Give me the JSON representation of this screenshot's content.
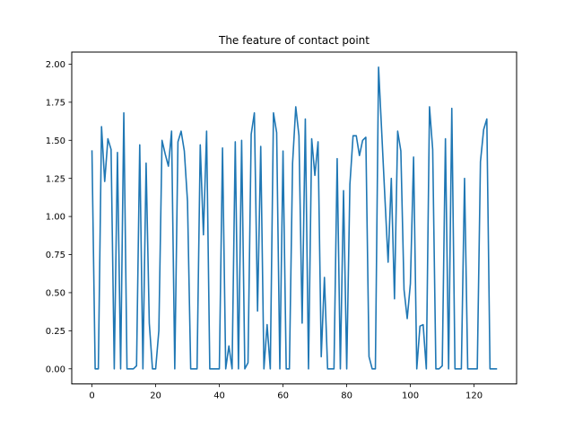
{
  "chart_data": {
    "type": "line",
    "title": "The feature of contact point",
    "xlabel": "",
    "ylabel": "",
    "xlim": [
      -6.35,
      133.35
    ],
    "ylim": [
      -0.0992,
      2.0792
    ],
    "xticks": [
      0,
      20,
      40,
      60,
      80,
      100,
      120
    ],
    "yticks": [
      0.0,
      0.25,
      0.5,
      0.75,
      1.0,
      1.25,
      1.5,
      1.75,
      2.0
    ],
    "xtick_labels": [
      "0",
      "20",
      "40",
      "60",
      "80",
      "100",
      "120"
    ],
    "ytick_labels": [
      "0.00",
      "0.25",
      "0.50",
      "0.75",
      "1.00",
      "1.25",
      "1.50",
      "1.75",
      "2.00"
    ],
    "grid": false,
    "series": [
      {
        "color": "#1f77b4",
        "x": [
          0,
          1,
          2,
          3,
          4,
          5,
          6,
          7,
          8,
          9,
          10,
          11,
          12,
          13,
          14,
          15,
          16,
          17,
          18,
          19,
          20,
          21,
          22,
          23,
          24,
          25,
          26,
          27,
          28,
          29,
          30,
          31,
          32,
          33,
          34,
          35,
          36,
          37,
          38,
          39,
          40,
          41,
          42,
          43,
          44,
          45,
          46,
          47,
          48,
          49,
          50,
          51,
          52,
          53,
          54,
          55,
          56,
          57,
          58,
          59,
          60,
          61,
          62,
          63,
          64,
          65,
          66,
          67,
          68,
          69,
          70,
          71,
          72,
          73,
          74,
          75,
          76,
          77,
          78,
          79,
          80,
          81,
          82,
          83,
          84,
          85,
          86,
          87,
          88,
          89,
          90,
          91,
          92,
          93,
          94,
          95,
          96,
          97,
          98,
          99,
          100,
          101,
          102,
          103,
          104,
          105,
          106,
          107,
          108,
          109,
          110,
          111,
          112,
          113,
          114,
          115,
          116,
          117,
          118,
          119,
          120,
          121,
          122,
          123,
          124,
          125,
          126,
          127
        ],
        "y": [
          1.43,
          0.0,
          0.0,
          1.59,
          1.23,
          1.51,
          1.44,
          0.0,
          1.42,
          0.0,
          1.68,
          0.0,
          0.0,
          0.0,
          0.02,
          1.47,
          0.0,
          1.35,
          0.3,
          0.0,
          0.0,
          0.25,
          1.5,
          1.41,
          1.33,
          1.56,
          0.0,
          1.49,
          1.56,
          1.43,
          1.1,
          0.0,
          0.0,
          0.0,
          1.47,
          0.88,
          1.56,
          0.0,
          0.0,
          0.0,
          0.0,
          1.45,
          0.0,
          0.15,
          0.0,
          1.49,
          0.0,
          1.5,
          0.0,
          0.04,
          1.54,
          1.68,
          0.38,
          1.46,
          0.0,
          0.29,
          0.0,
          1.68,
          1.55,
          0.0,
          1.43,
          0.0,
          0.0,
          1.35,
          1.72,
          1.53,
          0.3,
          1.64,
          0.0,
          1.51,
          1.27,
          1.49,
          0.08,
          0.6,
          0.0,
          0.0,
          0.0,
          1.38,
          0.0,
          1.17,
          0.0,
          1.21,
          1.53,
          1.53,
          1.4,
          1.5,
          1.52,
          0.08,
          0.0,
          0.0,
          1.98,
          1.55,
          1.12,
          0.7,
          1.25,
          0.46,
          1.56,
          1.43,
          0.52,
          0.33,
          0.56,
          1.39,
          0.0,
          0.28,
          0.29,
          0.0,
          1.72,
          1.44,
          0.0,
          0.0,
          0.02,
          1.51,
          0.0,
          1.71,
          0.0,
          0.0,
          0.0,
          1.25,
          0.0,
          0.0,
          0.0,
          0.0,
          1.36,
          1.57,
          1.64,
          0.0,
          0.0,
          0.0
        ]
      }
    ]
  }
}
